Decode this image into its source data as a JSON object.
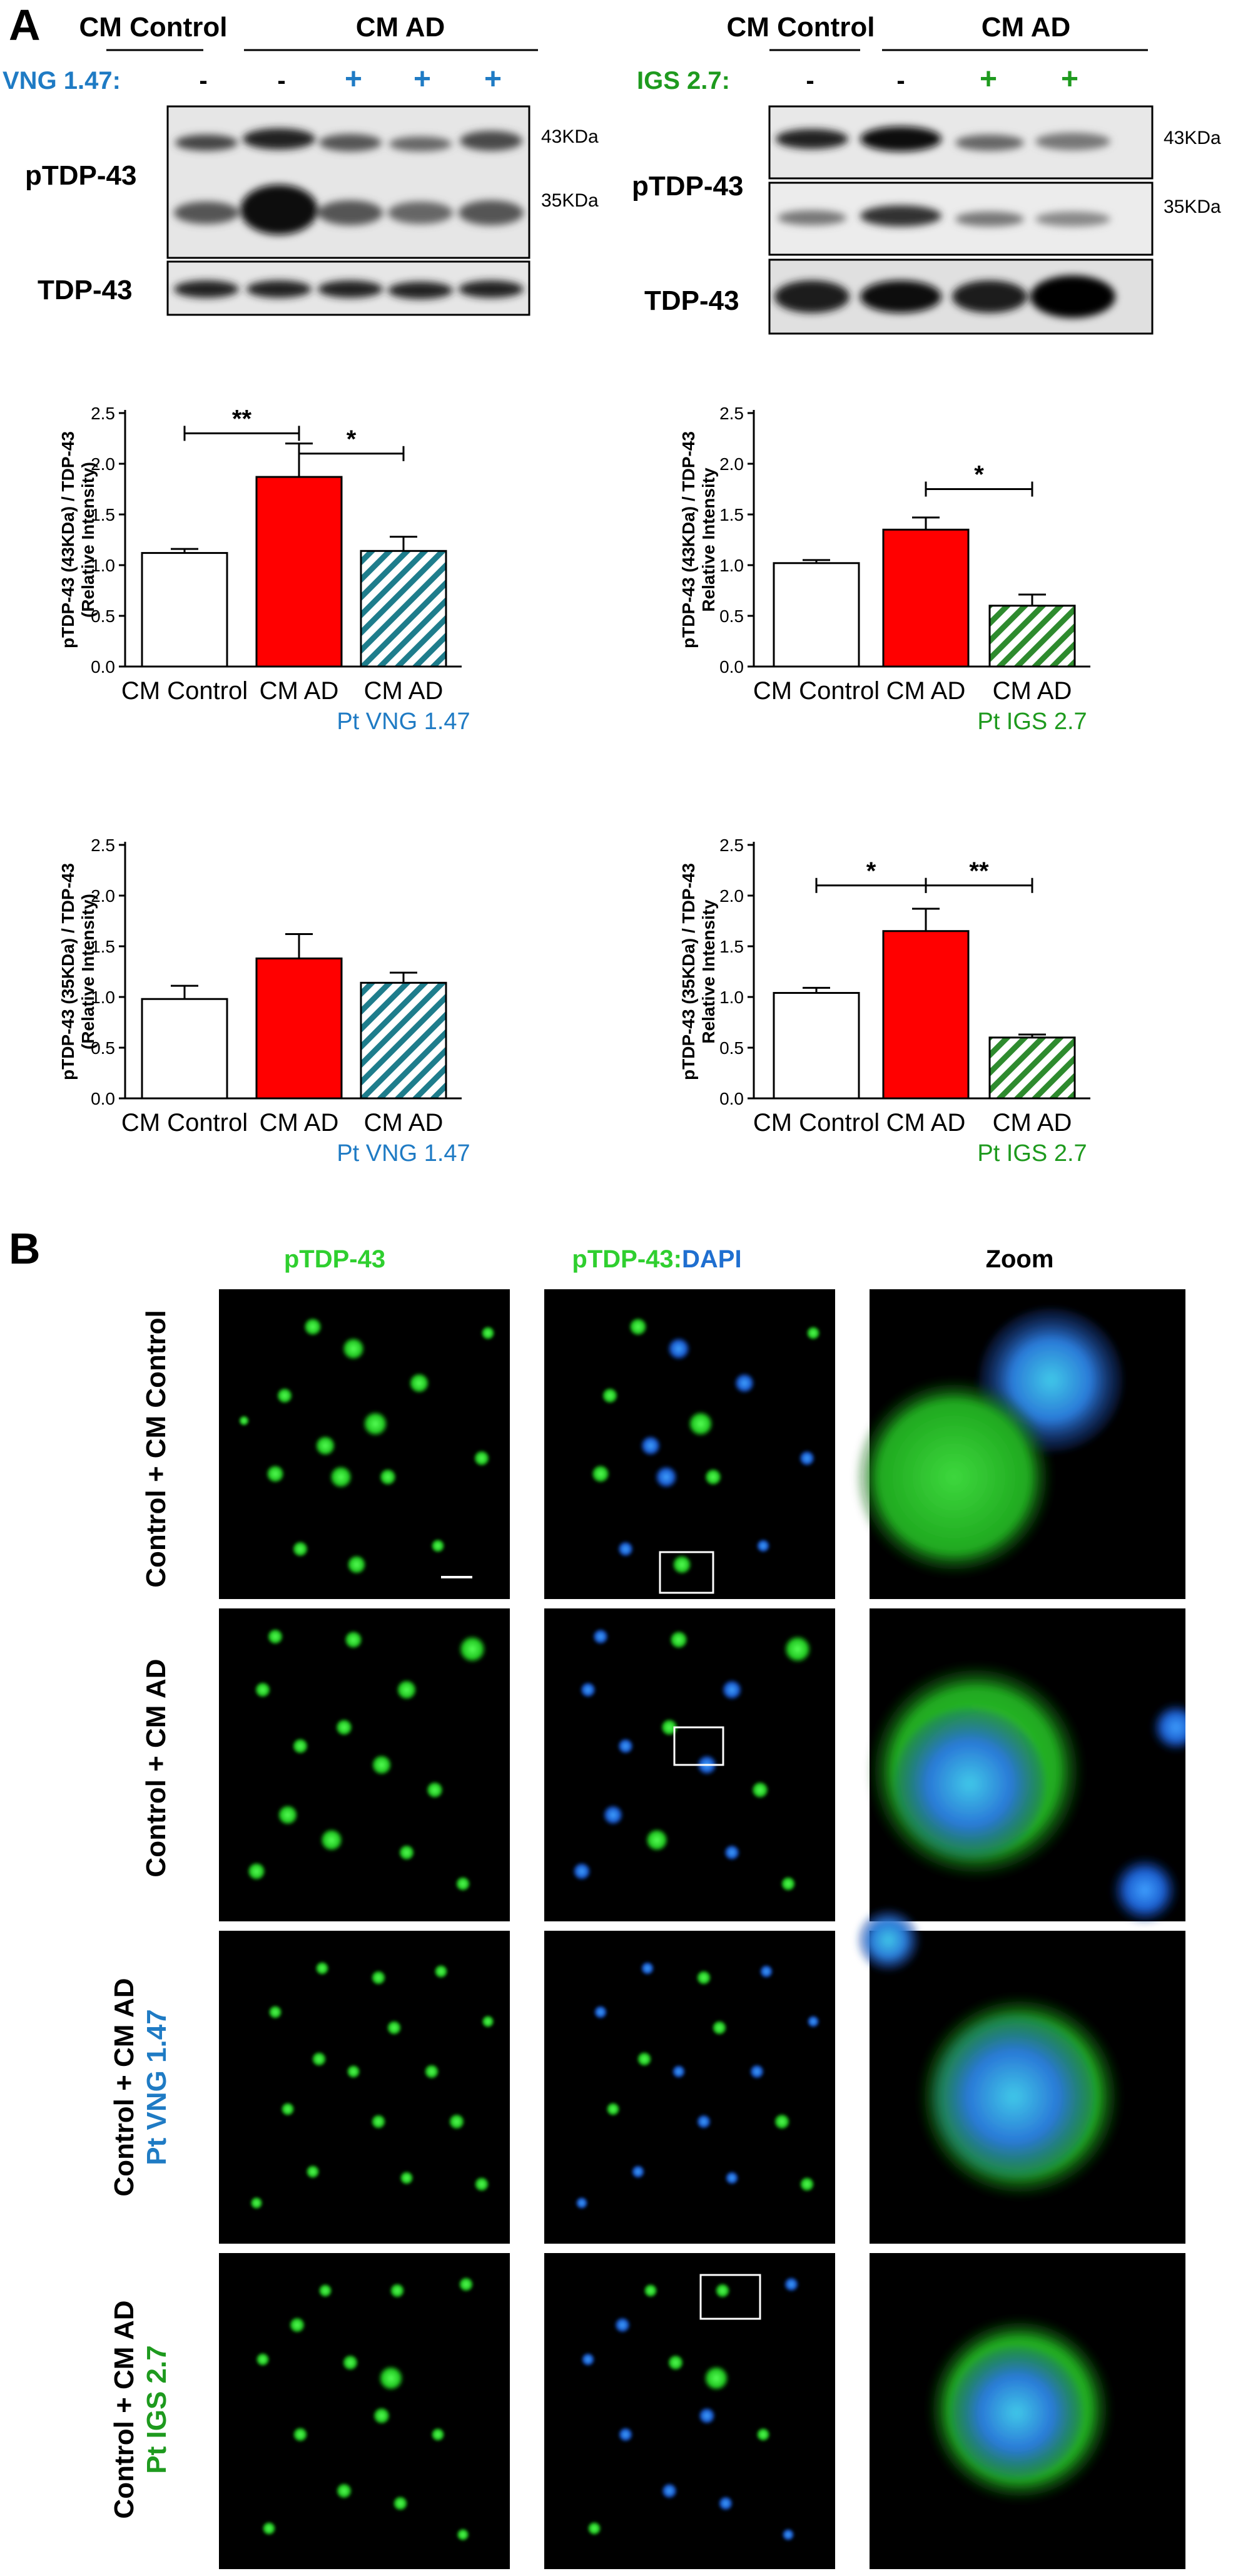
{
  "panel_a": {
    "letter": "A",
    "blot_left": {
      "hdr_control": "CM Control",
      "hdr_ad": "CM AD",
      "treatment_label": "VNG 1.47:",
      "lane_signs": [
        "-",
        "-",
        "+",
        "+",
        "+"
      ],
      "row1_label": "pTDP-43",
      "row2_label": "TDP-43",
      "kda_43": "43KDa",
      "kda_35": "35KDa"
    },
    "blot_right": {
      "hdr_control": "CM Control",
      "hdr_ad": "CM AD",
      "treatment_label": "IGS 2.7:",
      "lane_signs": [
        "-",
        "-",
        "+",
        "+"
      ],
      "row1_label": "pTDP-43",
      "row2_label": "TDP-43",
      "kda_43": "43KDa",
      "kda_35": "35KDa"
    }
  },
  "colors": {
    "vng_blue": "#1f7bc4",
    "igs_green": "#1e9a1e",
    "ad_red": "#ff0000",
    "hatch_teal": "#1e7d8c",
    "hatch_green": "#2e8b2e"
  },
  "chart_data": [
    {
      "type": "bar",
      "ylabel": "pTDP-43 (43KDa) / TDP-43",
      "ylabel2": "(Relative Intensity)",
      "categories": [
        "CM Control",
        "CM AD",
        "CM AD"
      ],
      "category_sublabels": [
        "",
        "",
        "Pt VNG 1.47"
      ],
      "values": [
        1.12,
        1.87,
        1.14
      ],
      "errors": [
        0.04,
        0.33,
        0.14
      ],
      "fills": [
        "white",
        "red",
        "hatch-teal"
      ],
      "ylim": [
        0,
        2.5
      ],
      "yticks": [
        "0.0",
        "0.5",
        "1.0",
        "1.5",
        "2.0",
        "2.5"
      ],
      "significance": [
        {
          "from": 0,
          "to": 1,
          "label": "**",
          "y": 2.3
        },
        {
          "from": 1,
          "to": 2,
          "label": "*",
          "y": 2.1
        }
      ]
    },
    {
      "type": "bar",
      "ylabel": "pTDP-43 (43KDa) / TDP-43",
      "ylabel2": "Relative Intensity",
      "categories": [
        "CM Control",
        "CM AD",
        "CM AD"
      ],
      "category_sublabels": [
        "",
        "",
        "Pt IGS 2.7"
      ],
      "values": [
        1.02,
        1.35,
        0.6
      ],
      "errors": [
        0.03,
        0.12,
        0.11
      ],
      "fills": [
        "white",
        "red",
        "hatch-green"
      ],
      "ylim": [
        0,
        2.5
      ],
      "yticks": [
        "0.0",
        "0.5",
        "1.0",
        "1.5",
        "2.0",
        "2.5"
      ],
      "significance": [
        {
          "from": 1,
          "to": 2,
          "label": "*",
          "y": 1.75
        }
      ]
    },
    {
      "type": "bar",
      "ylabel": "pTDP-43 (35KDa) / TDP-43",
      "ylabel2": "(Relative Intensity)",
      "categories": [
        "CM Control",
        "CM AD",
        "CM AD"
      ],
      "category_sublabels": [
        "",
        "",
        "Pt VNG 1.47"
      ],
      "values": [
        0.98,
        1.38,
        1.14
      ],
      "errors": [
        0.13,
        0.24,
        0.1
      ],
      "fills": [
        "white",
        "red",
        "hatch-teal"
      ],
      "ylim": [
        0,
        2.5
      ],
      "yticks": [
        "0.0",
        "0.5",
        "1.0",
        "1.5",
        "2.0",
        "2.5"
      ],
      "significance": []
    },
    {
      "type": "bar",
      "ylabel": "pTDP-43 (35KDa) / TDP-43",
      "ylabel2": "Relative Intensity",
      "categories": [
        "CM Control",
        "CM AD",
        "CM AD"
      ],
      "category_sublabels": [
        "",
        "",
        "Pt IGS 2.7"
      ],
      "values": [
        1.04,
        1.65,
        0.6
      ],
      "errors": [
        0.05,
        0.22,
        0.03
      ],
      "fills": [
        "white",
        "red",
        "hatch-green"
      ],
      "ylim": [
        0,
        2.5
      ],
      "yticks": [
        "0.0",
        "0.5",
        "1.0",
        "1.5",
        "2.0",
        "2.5"
      ],
      "significance": [
        {
          "from": 0,
          "to": 1,
          "label": "*",
          "y": 2.1
        },
        {
          "from": 1,
          "to": 2,
          "label": "**",
          "y": 2.1
        }
      ]
    }
  ],
  "panel_b": {
    "letter": "B",
    "col_headers": {
      "green": "pTDP-43",
      "merge_green": "pTDP-43",
      "merge_sep": ":",
      "merge_blue": "DAPI",
      "zoom": "Zoom"
    },
    "rows": [
      {
        "line1": "Control + CM Control",
        "line2": ""
      },
      {
        "line1": "Control + CM AD",
        "line2": ""
      },
      {
        "line1": "Control + CM AD",
        "line2": "Pt VNG 1.47"
      },
      {
        "line1": "Control + CM AD",
        "line2": "Pt IGS 2.7"
      }
    ]
  }
}
